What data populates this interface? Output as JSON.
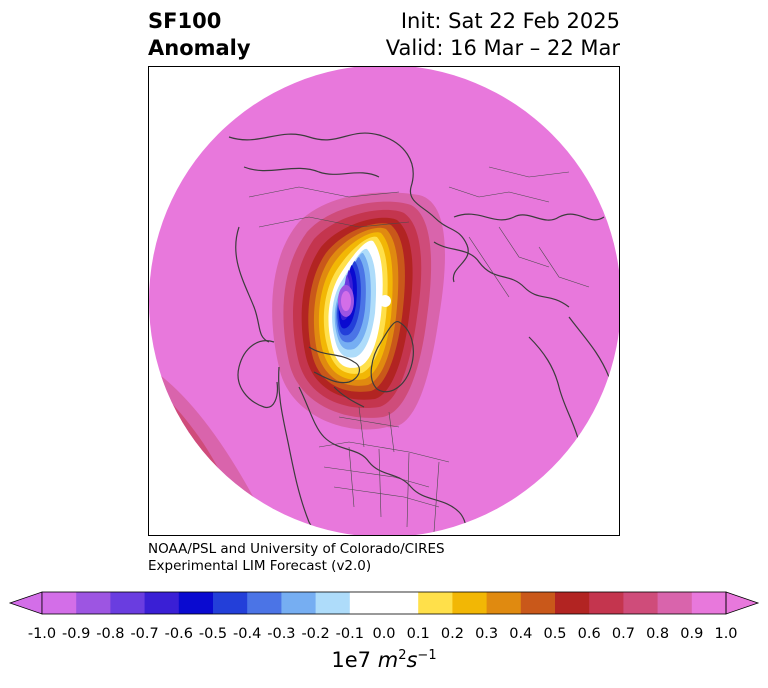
{
  "title": {
    "variable": "SF100",
    "kind": "Anomaly",
    "init": "Init: Sat 22 Feb 2025",
    "valid": "Valid: 16 Mar – 22 Mar"
  },
  "credit": {
    "line1": "NOAA/PSL and University of Colorado/CIRES",
    "line2": "Experimental LIM Forecast (v2.0)"
  },
  "colorbar": {
    "ticks": [
      "-1.0",
      "-0.9",
      "-0.8",
      "-0.7",
      "-0.6",
      "-0.5",
      "-0.4",
      "-0.3",
      "-0.2",
      "-0.1",
      "0.0",
      "0.1",
      "0.2",
      "0.3",
      "0.4",
      "0.5",
      "0.6",
      "0.7",
      "0.8",
      "0.9",
      "1.0"
    ],
    "colors": [
      "#d36ee8",
      "#9d55e2",
      "#6a3de0",
      "#3a1fd5",
      "#0a0ad0",
      "#233fd9",
      "#4b74e6",
      "#76aef2",
      "#aedcfa",
      "#ffffff",
      "#ffffff",
      "#ffe04a",
      "#f2b705",
      "#e08a10",
      "#c9581a",
      "#b22422",
      "#c4354e",
      "#cf4c7a",
      "#d964ac",
      "#e878dc"
    ],
    "unit_base": "1e7 ",
    "unit_m": "m",
    "unit_m_exp": "2",
    "unit_s": "s",
    "unit_s_exp": "−1"
  },
  "map": {
    "projection": "north-polar-stereographic",
    "background_color": "#e878dc",
    "coastline_color": "#3c3c3c",
    "features": [
      "coastlines",
      "country-borders",
      "us-state-borders",
      "canada-province-borders"
    ],
    "anomaly_center_sign": "negative",
    "anomaly_center_value": -1.0,
    "anomaly_center_region": "Arctic Ocean / Canadian Arctic"
  }
}
